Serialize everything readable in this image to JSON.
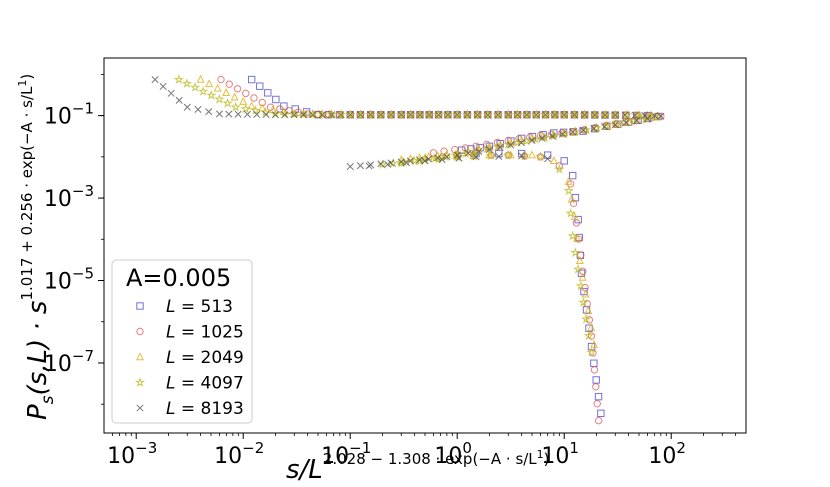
{
  "chart_data": {
    "type": "scatter",
    "xscale": "log",
    "yscale": "log",
    "xlim": [
      0.0005,
      500
    ],
    "ylim": [
      2e-09,
      2.5
    ],
    "x_ticks": [
      {
        "v": 0.001,
        "base": "10",
        "exp": "−3"
      },
      {
        "v": 0.01,
        "base": "10",
        "exp": "−2"
      },
      {
        "v": 0.1,
        "base": "10",
        "exp": "−1"
      },
      {
        "v": 1,
        "base": "10",
        "exp": "0"
      },
      {
        "v": 10,
        "base": "10",
        "exp": "1"
      },
      {
        "v": 100,
        "base": "10",
        "exp": "2"
      }
    ],
    "y_ticks": [
      {
        "v": 0.1,
        "base": "10",
        "exp": "−1"
      },
      {
        "v": 0.001,
        "base": "10",
        "exp": "−3"
      },
      {
        "v": 1e-05,
        "base": "10",
        "exp": "−5"
      },
      {
        "v": 1e-07,
        "base": "10",
        "exp": "−7"
      }
    ],
    "xlabel": {
      "main": "s/L",
      "exp": "2.028 − 1.308 · exp(−A · s/L",
      "exp_sup": "1",
      "exp_end": ")"
    },
    "ylabel": {
      "main": "P",
      "sub": "s",
      "args": "(s,L) · s",
      "exp": "1.017 + 0.256 · exp(−A · s/L",
      "exp_sup": "1",
      "exp_end": ")"
    },
    "legend": {
      "title": "A=0.005",
      "placement": "lower-left"
    },
    "series": [
      {
        "name": "L = 513",
        "label_var": "L",
        "label_val": "= 513",
        "marker": "square",
        "color": "#4444cc",
        "upper": [
          [
            0.012,
            0.75
          ],
          [
            0.024,
            0.17
          ],
          [
            0.05,
            0.105
          ],
          [
            0.1,
            0.105
          ],
          [
            0.3,
            0.105
          ],
          [
            1,
            0.105
          ],
          [
            3,
            0.105
          ],
          [
            10,
            0.105
          ],
          [
            30,
            0.103
          ],
          [
            60,
            0.1
          ]
        ],
        "lower": [
          [
            1.1,
            0.0145
          ],
          [
            2,
            0.018
          ],
          [
            4,
            0.028
          ],
          [
            8,
            0.038
          ],
          [
            15,
            0.042
          ],
          [
            25,
            0.055
          ],
          [
            40,
            0.07
          ],
          [
            60,
            0.085
          ],
          [
            75,
            0.095
          ]
        ],
        "tail": [
          [
            1.5,
            0.012
          ],
          [
            4,
            0.012
          ],
          [
            7,
            0.011
          ],
          [
            10,
            0.008
          ],
          [
            12,
            0.0035
          ],
          [
            13.5,
            0.0003
          ],
          [
            14.5,
            1.5e-05
          ],
          [
            18,
            2.5e-07
          ],
          [
            22,
            6e-09
          ]
        ]
      },
      {
        "name": "L = 1025",
        "label_var": "L",
        "label_val": "= 1025",
        "marker": "circle",
        "color": "#dd5555",
        "upper": [
          [
            0.0062,
            0.75
          ],
          [
            0.018,
            0.16
          ],
          [
            0.04,
            0.11
          ],
          [
            0.1,
            0.105
          ],
          [
            0.3,
            0.105
          ],
          [
            1,
            0.105
          ],
          [
            3,
            0.105
          ],
          [
            10,
            0.105
          ],
          [
            30,
            0.104
          ],
          [
            60,
            0.1
          ]
        ],
        "lower": [
          [
            0.6,
            0.0125
          ],
          [
            1.5,
            0.018
          ],
          [
            3,
            0.025
          ],
          [
            6,
            0.033
          ],
          [
            12,
            0.04
          ],
          [
            25,
            0.058
          ],
          [
            45,
            0.075
          ],
          [
            65,
            0.088
          ],
          [
            80,
            0.096
          ]
        ],
        "tail": [
          [
            1,
            0.011
          ],
          [
            3,
            0.011
          ],
          [
            6,
            0.01
          ],
          [
            9,
            0.006
          ],
          [
            11.5,
            0.0022
          ],
          [
            13,
            0.00025
          ],
          [
            18,
            4.5e-07
          ],
          [
            21,
            4e-09
          ]
        ]
      },
      {
        "name": "L = 2049",
        "label_var": "L",
        "label_val": "= 2049",
        "marker": "triangle",
        "color": "#ddaa00",
        "upper": [
          [
            0.004,
            0.75
          ],
          [
            0.012,
            0.17
          ],
          [
            0.03,
            0.11
          ],
          [
            0.1,
            0.105
          ],
          [
            0.3,
            0.105
          ],
          [
            1,
            0.105
          ],
          [
            3,
            0.105
          ],
          [
            10,
            0.105
          ],
          [
            30,
            0.104
          ],
          [
            60,
            0.1
          ]
        ],
        "lower": [
          [
            0.3,
            0.0085
          ],
          [
            0.8,
            0.011
          ],
          [
            2,
            0.017
          ],
          [
            5,
            0.028
          ],
          [
            10,
            0.038
          ],
          [
            20,
            0.05
          ],
          [
            40,
            0.07
          ],
          [
            70,
            0.092
          ]
        ],
        "tail": [
          [
            0.5,
            0.0095
          ],
          [
            2,
            0.011
          ],
          [
            5,
            0.011
          ],
          [
            8,
            0.008
          ],
          [
            11,
            0.0025
          ],
          [
            12.5,
            0.00035
          ],
          [
            14,
            3e-05
          ],
          [
            19,
            2.8e-07
          ]
        ]
      },
      {
        "name": "L = 4097",
        "label_var": "L",
        "label_val": "= 4097",
        "marker": "star",
        "color": "#bbbb22",
        "upper": [
          [
            0.0025,
            0.75
          ],
          [
            0.0085,
            0.16
          ],
          [
            0.02,
            0.11
          ],
          [
            0.1,
            0.105
          ],
          [
            0.3,
            0.105
          ],
          [
            1,
            0.105
          ],
          [
            3,
            0.105
          ],
          [
            10,
            0.105
          ],
          [
            30,
            0.104
          ],
          [
            65,
            0.1
          ]
        ],
        "lower": [
          [
            0.2,
            0.0065
          ],
          [
            0.5,
            0.0085
          ],
          [
            1.2,
            0.012
          ],
          [
            3,
            0.02
          ],
          [
            8,
            0.032
          ],
          [
            20,
            0.05
          ],
          [
            45,
            0.075
          ],
          [
            75,
            0.095
          ]
        ],
        "tail": [
          [
            0.3,
            0.007
          ],
          [
            1,
            0.01
          ],
          [
            3,
            0.011
          ],
          [
            6,
            0.01
          ],
          [
            9,
            0.005
          ],
          [
            11,
            0.0015
          ],
          [
            12,
            0.00012
          ],
          [
            18,
            1.8e-07
          ]
        ]
      },
      {
        "name": "L = 8193",
        "label_var": "L",
        "label_val": "= 8193",
        "marker": "x",
        "color": "#555555",
        "upper": [
          [
            0.0015,
            0.75
          ],
          [
            0.003,
            0.16
          ],
          [
            0.006,
            0.11
          ],
          [
            0.02,
            0.105
          ],
          [
            0.1,
            0.105
          ],
          [
            0.3,
            0.105
          ],
          [
            1,
            0.105
          ],
          [
            3,
            0.105
          ],
          [
            10,
            0.105
          ],
          [
            30,
            0.104
          ],
          [
            70,
            0.1
          ]
        ],
        "lower": [
          [
            0.1,
            0.0058
          ],
          [
            0.3,
            0.0075
          ],
          [
            0.8,
            0.01
          ],
          [
            2,
            0.015
          ],
          [
            5,
            0.025
          ],
          [
            12,
            0.04
          ],
          [
            30,
            0.06
          ],
          [
            60,
            0.085
          ],
          [
            80,
            0.097
          ]
        ],
        "tail": [
          [
            0.15,
            0.006
          ],
          [
            0.5,
            0.008
          ],
          [
            1.5,
            0.01
          ],
          [
            4,
            0.0105
          ],
          [
            7,
            0.009
          ]
        ]
      }
    ]
  }
}
